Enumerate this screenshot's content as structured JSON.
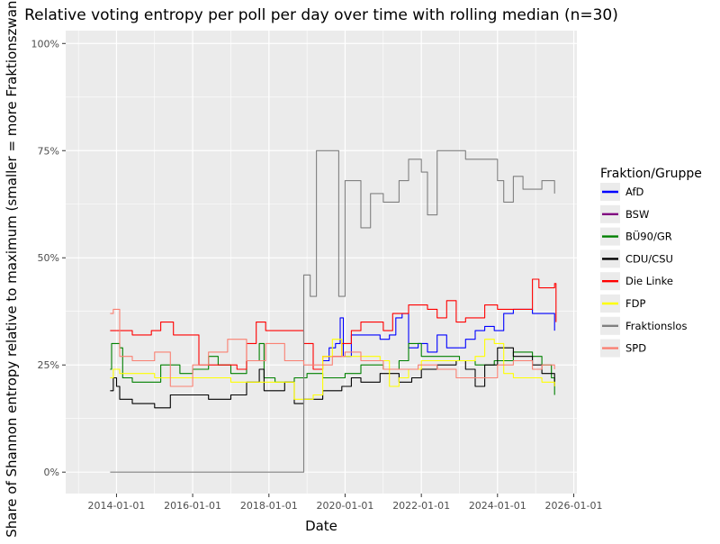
{
  "chart_data": {
    "type": "line",
    "title": "Relative voting entropy per poll per day over time with rolling median (n=30)",
    "xlabel": "Date",
    "ylabel": "Share of Shannon entropy relative to maximum (smaller = more Fraktionszwang)",
    "xlim": [
      "2012-09-01",
      "2026-01-31"
    ],
    "ylim": [
      -0.05,
      1.03
    ],
    "x_ticks": [
      "2014-01-01",
      "2016-01-01",
      "2018-01-01",
      "2020-01-01",
      "2022-01-01",
      "2024-01-01",
      "2026-01-01"
    ],
    "y_ticks": [
      {
        "value": 0,
        "label": "0%"
      },
      {
        "value": 0.25,
        "label": "25%"
      },
      {
        "value": 0.5,
        "label": "50%"
      },
      {
        "value": 0.75,
        "label": "75%"
      },
      {
        "value": 1.0,
        "label": "100%"
      }
    ],
    "grid": true,
    "background": "#ebebeb",
    "legend": {
      "title": "Fraktion/Gruppe",
      "position": "right"
    },
    "series": [
      {
        "name": "AfD",
        "color": "#0000ff",
        "points": [
          [
            "2019-06-01",
            0.26
          ],
          [
            "2019-08-01",
            0.29
          ],
          [
            "2019-10-01",
            0.3
          ],
          [
            "2019-11-15",
            0.36
          ],
          [
            "2019-12-15",
            0.27
          ],
          [
            "2020-03-01",
            0.32
          ],
          [
            "2020-06-01",
            0.32
          ],
          [
            "2020-09-01",
            0.32
          ],
          [
            "2020-12-01",
            0.31
          ],
          [
            "2021-03-01",
            0.32
          ],
          [
            "2021-05-01",
            0.36
          ],
          [
            "2021-07-01",
            0.37
          ],
          [
            "2021-09-01",
            0.29
          ],
          [
            "2021-12-01",
            0.3
          ],
          [
            "2022-03-01",
            0.28
          ],
          [
            "2022-06-01",
            0.32
          ],
          [
            "2022-09-01",
            0.29
          ],
          [
            "2023-01-01",
            0.29
          ],
          [
            "2023-03-01",
            0.31
          ],
          [
            "2023-06-01",
            0.33
          ],
          [
            "2023-09-01",
            0.34
          ],
          [
            "2023-12-01",
            0.33
          ],
          [
            "2024-03-01",
            0.37
          ],
          [
            "2024-06-01",
            0.38
          ],
          [
            "2024-09-01",
            0.38
          ],
          [
            "2024-12-01",
            0.37
          ],
          [
            "2025-03-01",
            0.37
          ],
          [
            "2025-06-01",
            0.37
          ],
          [
            "2025-07-01",
            0.33
          ]
        ]
      },
      {
        "name": "BSW",
        "color": "#800080",
        "points": []
      },
      {
        "name": "BÜ90/GR",
        "color": "#008000",
        "points": [
          [
            "2013-11-01",
            0.24
          ],
          [
            "2013-11-15",
            0.3
          ],
          [
            "2014-02-01",
            0.29
          ],
          [
            "2014-03-01",
            0.22
          ],
          [
            "2014-06-01",
            0.21
          ],
          [
            "2015-01-01",
            0.21
          ],
          [
            "2015-03-01",
            0.25
          ],
          [
            "2015-09-01",
            0.23
          ],
          [
            "2016-01-01",
            0.24
          ],
          [
            "2016-06-01",
            0.27
          ],
          [
            "2016-09-01",
            0.25
          ],
          [
            "2017-01-01",
            0.23
          ],
          [
            "2017-06-01",
            0.26
          ],
          [
            "2017-10-01",
            0.3
          ],
          [
            "2017-11-15",
            0.22
          ],
          [
            "2018-03-01",
            0.21
          ],
          [
            "2018-09-01",
            0.22
          ],
          [
            "2019-01-01",
            0.23
          ],
          [
            "2019-06-01",
            0.22
          ],
          [
            "2019-09-01",
            0.22
          ],
          [
            "2020-01-01",
            0.23
          ],
          [
            "2020-06-01",
            0.25
          ],
          [
            "2021-01-01",
            0.24
          ],
          [
            "2021-06-01",
            0.26
          ],
          [
            "2021-09-01",
            0.3
          ],
          [
            "2022-01-01",
            0.27
          ],
          [
            "2022-06-01",
            0.27
          ],
          [
            "2023-01-01",
            0.26
          ],
          [
            "2023-06-01",
            0.25
          ],
          [
            "2023-12-01",
            0.26
          ],
          [
            "2024-06-01",
            0.28
          ],
          [
            "2024-12-01",
            0.27
          ],
          [
            "2025-03-01",
            0.25
          ],
          [
            "2025-06-01",
            0.22
          ],
          [
            "2025-07-01",
            0.18
          ]
        ]
      },
      {
        "name": "CDU/CSU",
        "color": "#000000",
        "points": [
          [
            "2013-11-01",
            0.19
          ],
          [
            "2013-12-01",
            0.22
          ],
          [
            "2014-01-01",
            0.2
          ],
          [
            "2014-02-01",
            0.17
          ],
          [
            "2014-06-01",
            0.16
          ],
          [
            "2015-01-01",
            0.15
          ],
          [
            "2015-06-01",
            0.18
          ],
          [
            "2016-01-01",
            0.18
          ],
          [
            "2016-06-01",
            0.17
          ],
          [
            "2017-01-01",
            0.18
          ],
          [
            "2017-06-01",
            0.21
          ],
          [
            "2017-10-01",
            0.24
          ],
          [
            "2017-11-15",
            0.19
          ],
          [
            "2018-06-01",
            0.21
          ],
          [
            "2018-09-01",
            0.16
          ],
          [
            "2018-12-01",
            0.17
          ],
          [
            "2019-06-01",
            0.19
          ],
          [
            "2019-12-01",
            0.2
          ],
          [
            "2020-03-01",
            0.22
          ],
          [
            "2020-06-01",
            0.21
          ],
          [
            "2020-12-01",
            0.23
          ],
          [
            "2021-06-01",
            0.21
          ],
          [
            "2021-10-01",
            0.22
          ],
          [
            "2022-01-01",
            0.24
          ],
          [
            "2022-06-01",
            0.25
          ],
          [
            "2022-12-01",
            0.26
          ],
          [
            "2023-03-01",
            0.24
          ],
          [
            "2023-06-01",
            0.2
          ],
          [
            "2023-09-01",
            0.25
          ],
          [
            "2024-01-01",
            0.29
          ],
          [
            "2024-06-01",
            0.27
          ],
          [
            "2024-12-01",
            0.25
          ],
          [
            "2025-03-01",
            0.23
          ],
          [
            "2025-07-01",
            0.2
          ]
        ]
      },
      {
        "name": "Die Linke",
        "color": "#ff0000",
        "points": [
          [
            "2013-11-01",
            0.33
          ],
          [
            "2014-02-01",
            0.33
          ],
          [
            "2014-06-01",
            0.32
          ],
          [
            "2014-12-01",
            0.33
          ],
          [
            "2015-03-01",
            0.35
          ],
          [
            "2015-07-01",
            0.32
          ],
          [
            "2016-03-01",
            0.25
          ],
          [
            "2016-09-01",
            0.25
          ],
          [
            "2017-03-01",
            0.24
          ],
          [
            "2017-06-01",
            0.3
          ],
          [
            "2017-09-01",
            0.35
          ],
          [
            "2017-12-01",
            0.33
          ],
          [
            "2018-06-01",
            0.33
          ],
          [
            "2018-12-01",
            0.3
          ],
          [
            "2019-03-01",
            0.24
          ],
          [
            "2019-06-01",
            0.27
          ],
          [
            "2019-12-01",
            0.3
          ],
          [
            "2020-03-01",
            0.33
          ],
          [
            "2020-06-01",
            0.35
          ],
          [
            "2021-01-01",
            0.33
          ],
          [
            "2021-04-01",
            0.37
          ],
          [
            "2021-09-01",
            0.39
          ],
          [
            "2022-03-01",
            0.38
          ],
          [
            "2022-06-01",
            0.36
          ],
          [
            "2022-09-01",
            0.4
          ],
          [
            "2022-12-01",
            0.35
          ],
          [
            "2023-03-01",
            0.36
          ],
          [
            "2023-09-01",
            0.39
          ],
          [
            "2024-01-01",
            0.38
          ],
          [
            "2024-06-01",
            0.38
          ],
          [
            "2024-12-01",
            0.45
          ],
          [
            "2025-02-01",
            0.43
          ],
          [
            "2025-07-01",
            0.44
          ],
          [
            "2025-07-15",
            0.35
          ]
        ]
      },
      {
        "name": "FDP",
        "color": "#ffff00",
        "points": [
          [
            "2013-11-01",
            0.22
          ],
          [
            "2013-12-01",
            0.24
          ],
          [
            "2014-02-01",
            0.23
          ],
          [
            "2015-01-01",
            0.22
          ],
          [
            "2016-01-01",
            0.22
          ],
          [
            "2017-01-01",
            0.21
          ],
          [
            "2017-11-01",
            0.21
          ],
          [
            "2018-06-01",
            0.21
          ],
          [
            "2018-09-01",
            0.17
          ],
          [
            "2019-03-01",
            0.18
          ],
          [
            "2019-06-01",
            0.27
          ],
          [
            "2019-09-01",
            0.31
          ],
          [
            "2019-12-01",
            0.27
          ],
          [
            "2020-06-01",
            0.27
          ],
          [
            "2020-12-01",
            0.26
          ],
          [
            "2021-03-01",
            0.2
          ],
          [
            "2021-06-01",
            0.22
          ],
          [
            "2021-09-01",
            0.24
          ],
          [
            "2022-01-01",
            0.26
          ],
          [
            "2022-06-01",
            0.26
          ],
          [
            "2022-12-01",
            0.26
          ],
          [
            "2023-06-01",
            0.27
          ],
          [
            "2023-09-01",
            0.31
          ],
          [
            "2023-12-01",
            0.3
          ],
          [
            "2024-03-01",
            0.23
          ],
          [
            "2024-06-01",
            0.22
          ],
          [
            "2024-12-01",
            0.22
          ],
          [
            "2025-03-01",
            0.21
          ],
          [
            "2025-07-01",
            0.2
          ]
        ]
      },
      {
        "name": "Fraktionslos",
        "color": "#808080",
        "points": [
          [
            "2013-11-01",
            0.0
          ],
          [
            "2018-11-01",
            0.0
          ],
          [
            "2018-12-01",
            0.46
          ],
          [
            "2019-02-01",
            0.41
          ],
          [
            "2019-04-01",
            0.75
          ],
          [
            "2019-10-01",
            0.75
          ],
          [
            "2019-11-01",
            0.41
          ],
          [
            "2020-01-01",
            0.68
          ],
          [
            "2020-06-01",
            0.57
          ],
          [
            "2020-09-01",
            0.65
          ],
          [
            "2021-01-01",
            0.63
          ],
          [
            "2021-06-01",
            0.68
          ],
          [
            "2021-09-01",
            0.73
          ],
          [
            "2022-01-01",
            0.7
          ],
          [
            "2022-03-01",
            0.6
          ],
          [
            "2022-06-01",
            0.75
          ],
          [
            "2022-12-01",
            0.75
          ],
          [
            "2023-03-01",
            0.73
          ],
          [
            "2023-09-01",
            0.73
          ],
          [
            "2024-01-01",
            0.68
          ],
          [
            "2024-03-01",
            0.63
          ],
          [
            "2024-06-01",
            0.69
          ],
          [
            "2024-09-01",
            0.66
          ],
          [
            "2025-03-01",
            0.68
          ],
          [
            "2025-07-01",
            0.65
          ]
        ]
      },
      {
        "name": "SPD",
        "color": "#fa8072",
        "points": [
          [
            "2013-11-01",
            0.37
          ],
          [
            "2013-12-01",
            0.38
          ],
          [
            "2014-02-01",
            0.27
          ],
          [
            "2014-06-01",
            0.26
          ],
          [
            "2015-01-01",
            0.28
          ],
          [
            "2015-06-01",
            0.2
          ],
          [
            "2016-01-01",
            0.25
          ],
          [
            "2016-06-01",
            0.28
          ],
          [
            "2016-12-01",
            0.31
          ],
          [
            "2017-06-01",
            0.26
          ],
          [
            "2017-12-01",
            0.3
          ],
          [
            "2018-06-01",
            0.26
          ],
          [
            "2018-12-01",
            0.25
          ],
          [
            "2019-06-01",
            0.25
          ],
          [
            "2019-09-01",
            0.27
          ],
          [
            "2020-01-01",
            0.28
          ],
          [
            "2020-06-01",
            0.26
          ],
          [
            "2021-01-01",
            0.24
          ],
          [
            "2021-06-01",
            0.24
          ],
          [
            "2021-12-01",
            0.25
          ],
          [
            "2022-06-01",
            0.24
          ],
          [
            "2022-12-01",
            0.22
          ],
          [
            "2023-06-01",
            0.22
          ],
          [
            "2024-01-01",
            0.25
          ],
          [
            "2024-06-01",
            0.26
          ],
          [
            "2024-12-01",
            0.24
          ],
          [
            "2025-03-01",
            0.25
          ],
          [
            "2025-07-01",
            0.24
          ]
        ]
      }
    ]
  }
}
